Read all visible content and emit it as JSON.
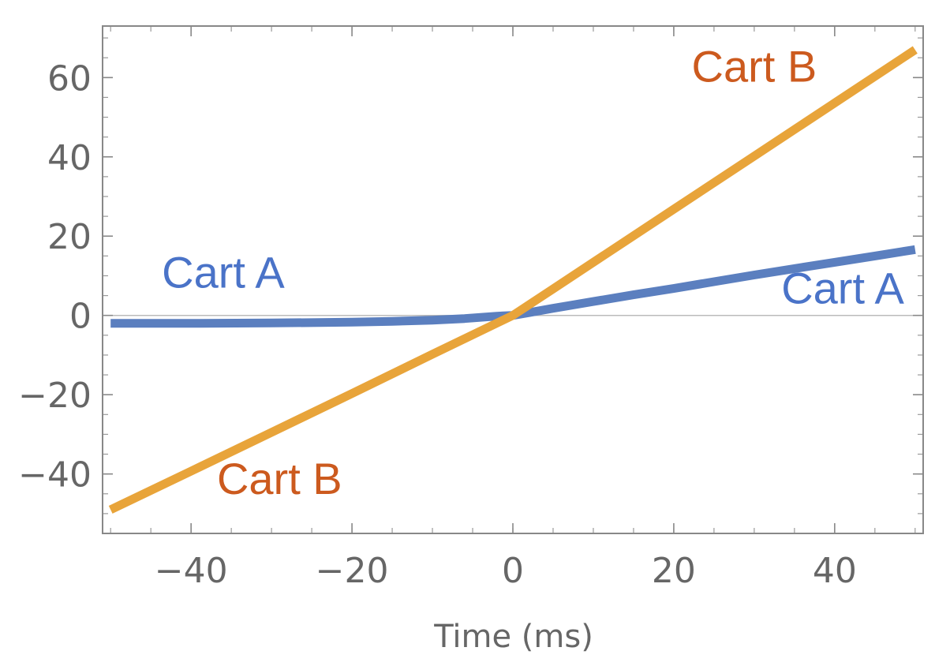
{
  "chart_data": {
    "type": "line",
    "title": "",
    "xlabel": "Time (ms)",
    "ylabel": "",
    "xlim": [
      -51,
      51
    ],
    "ylim": [
      -55,
      73
    ],
    "xticks": [
      -40,
      -20,
      0,
      20,
      40
    ],
    "yticks": [
      -40,
      -20,
      0,
      20,
      40,
      60
    ],
    "xtick_labels": [
      "−40",
      "−20",
      "0",
      "20",
      "40"
    ],
    "ytick_labels": [
      "−40",
      "−20",
      "0",
      "20",
      "40",
      "60"
    ],
    "grid": false,
    "frame": true,
    "zero_line": true,
    "series": [
      {
        "name": "Cart A",
        "color": "#5b7fbf",
        "x": [
          -50,
          -40,
          -30,
          -20,
          -15,
          -10,
          -6,
          -4,
          -2,
          0,
          2,
          5,
          10,
          15,
          20,
          25,
          30,
          35,
          40,
          45,
          50
        ],
        "y": [
          -2.0,
          -2.0,
          -1.9,
          -1.7,
          -1.5,
          -1.2,
          -0.8,
          -0.5,
          -0.2,
          0,
          0.7,
          1.8,
          3.5,
          5.2,
          6.8,
          8.5,
          10.2,
          11.8,
          13.4,
          15.0,
          16.6
        ]
      },
      {
        "name": "Cart B",
        "color": "#e8a43a",
        "x": [
          -50,
          -40,
          -30,
          -20,
          -10,
          -5,
          0,
          5,
          10,
          20,
          30,
          40,
          50
        ],
        "y": [
          -49,
          -39.3,
          -29.5,
          -19.7,
          -9.8,
          -4.9,
          0,
          6.7,
          13.4,
          26.8,
          40.2,
          53.6,
          67
        ]
      }
    ],
    "annotations": [
      {
        "text": "Cart A",
        "x": -36,
        "y": 7,
        "color": "#4a73c8"
      },
      {
        "text": "Cart A",
        "x": 41,
        "y": 3,
        "color": "#4a73c8"
      },
      {
        "text": "Cart B",
        "x": 30,
        "y": 59,
        "color": "#cc5a1e"
      },
      {
        "text": "Cart B",
        "x": -29,
        "y": -45,
        "color": "#cc5a1e"
      }
    ]
  }
}
